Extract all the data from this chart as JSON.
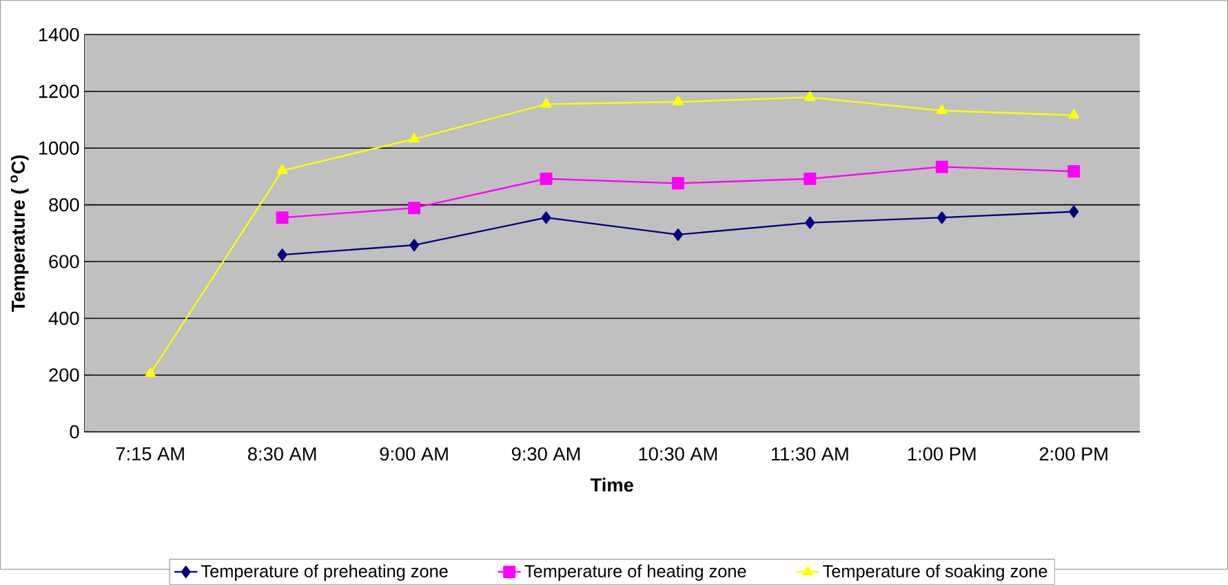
{
  "chart_data": {
    "type": "line",
    "xlabel": "Time",
    "ylabel": "Temperature ( $^{o}$C)",
    "categories": [
      "7:15 AM",
      "8:30 AM",
      "9:00 AM",
      "9:30 AM",
      "10:30 AM",
      "11:30 AM",
      "1:00 PM",
      "2:00 PM"
    ],
    "series": [
      {
        "name": "Temperature of preheating zone",
        "color": "#000080",
        "marker": "diamond",
        "values": [
          null,
          624,
          658,
          755,
          695,
          737,
          755,
          776
        ]
      },
      {
        "name": "Temperature of heating zone",
        "color": "#ff00ff",
        "marker": "square",
        "values": [
          null,
          755,
          789,
          892,
          876,
          892,
          934,
          918
        ]
      },
      {
        "name": "Temperature of soaking zone",
        "color": "#ffff00",
        "marker": "triangle",
        "values": [
          205,
          921,
          1032,
          1155,
          1163,
          1179,
          1132,
          1116
        ]
      }
    ],
    "ylim": [
      0,
      1400
    ],
    "yticks": [
      0,
      200,
      400,
      600,
      800,
      1000,
      1200,
      1400
    ],
    "grid": "y",
    "legend": "bottom"
  }
}
